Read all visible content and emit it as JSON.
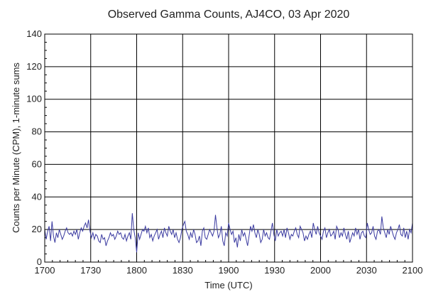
{
  "chart_data": {
    "type": "line",
    "title": "Observed Gamma Counts, AJ4CO, 03 Apr 2020",
    "xlabel": "Time (UTC)",
    "ylabel": "Counts per Minute (CPM), 1-minute sums",
    "x_tick_labels": [
      "1700",
      "1730",
      "1800",
      "1830",
      "1900",
      "1930",
      "2000",
      "2030",
      "2100"
    ],
    "y_tick_labels": [
      "0",
      "20",
      "40",
      "60",
      "80",
      "100",
      "120",
      "140"
    ],
    "xlim_minutes_after_1700": [
      0,
      240
    ],
    "ylim": [
      0,
      140
    ],
    "grid": true,
    "series": [
      {
        "color": "#3a3aa0",
        "values": [
          20,
          14,
          19,
          22,
          13,
          25,
          16,
          12,
          18,
          15,
          20,
          17,
          14,
          16,
          19,
          21,
          18,
          17,
          18,
          16,
          19,
          17,
          20,
          14,
          18,
          21,
          19,
          22,
          24,
          21,
          26,
          19,
          15,
          18,
          14,
          17,
          16,
          13,
          12,
          17,
          14,
          15,
          10,
          13,
          15,
          18,
          16,
          17,
          14,
          16,
          19,
          17,
          18,
          15,
          14,
          17,
          13,
          16,
          18,
          14,
          30,
          20,
          15,
          6,
          18,
          14,
          17,
          20,
          19,
          22,
          18,
          21,
          15,
          17,
          13,
          16,
          18,
          20,
          14,
          17,
          19,
          15,
          21,
          18,
          16,
          22,
          19,
          17,
          20,
          15,
          18,
          14,
          12,
          15,
          20,
          23,
          25,
          19,
          17,
          14,
          18,
          15,
          20,
          17,
          12,
          13,
          16,
          10,
          19,
          21,
          15,
          14,
          17,
          20,
          18,
          16,
          19,
          29,
          21,
          15,
          17,
          22,
          13,
          10,
          18,
          16,
          24,
          20,
          17,
          19,
          12,
          15,
          9,
          17,
          13,
          20,
          16,
          18,
          14,
          10,
          16,
          22,
          19,
          23,
          18,
          15,
          20,
          17,
          12,
          14,
          20,
          16,
          18,
          15,
          14,
          19,
          24,
          17,
          13,
          20,
          16,
          18,
          19,
          16,
          20,
          15,
          21,
          18,
          14,
          17,
          16,
          19,
          21,
          17,
          15,
          22,
          20,
          18,
          13,
          16,
          14,
          17,
          19,
          15,
          24,
          20,
          17,
          22,
          18,
          16,
          14,
          19,
          21,
          15,
          18,
          20,
          16,
          17,
          19,
          14,
          22,
          20,
          15,
          18,
          16,
          21,
          17,
          14,
          19,
          12,
          15,
          18,
          16,
          21,
          17,
          20,
          14,
          18,
          19,
          16,
          15,
          24,
          20,
          17,
          18,
          22,
          16,
          14,
          19,
          20,
          17,
          28,
          21,
          18,
          15,
          20,
          17,
          22,
          19,
          16,
          14,
          18,
          20,
          23,
          17,
          16,
          21,
          15,
          19,
          14,
          20,
          18,
          24
        ]
      }
    ]
  }
}
